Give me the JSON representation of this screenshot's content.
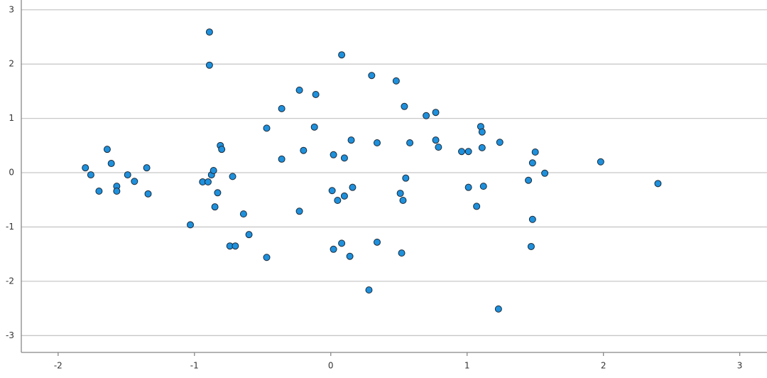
{
  "chart_data": {
    "type": "scatter",
    "x": [
      -1.8,
      -1.76,
      -1.7,
      -1.64,
      -1.61,
      -1.57,
      -1.57,
      -1.49,
      -1.44,
      -1.35,
      -1.34,
      -1.03,
      -0.89,
      -0.89,
      -0.94,
      -0.9,
      -0.875,
      -0.86,
      -0.81,
      -0.8,
      -0.83,
      -0.85,
      -0.72,
      -0.74,
      -0.7,
      -0.64,
      -0.6,
      -0.47,
      -0.47,
      -0.36,
      -0.36,
      -0.23,
      -0.2,
      -0.23,
      -0.11,
      -0.12,
      0.02,
      0.01,
      0.02,
      0.05,
      0.08,
      0.08,
      0.1,
      0.1,
      0.15,
      0.16,
      0.14,
      0.28,
      0.3,
      0.34,
      0.34,
      0.48,
      0.51,
      0.53,
      0.52,
      0.54,
      0.55,
      0.58,
      0.7,
      0.77,
      0.77,
      0.79,
      0.96,
      1.01,
      1.01,
      1.07,
      1.1,
      1.11,
      1.11,
      1.12,
      1.24,
      1.23,
      1.45,
      1.48,
      1.5,
      1.48,
      1.47,
      1.57,
      1.98,
      2.4
    ],
    "values": [
      0.09,
      -0.04,
      -0.34,
      0.43,
      0.17,
      -0.25,
      -0.34,
      -0.04,
      -0.16,
      0.09,
      -0.39,
      -0.96,
      2.59,
      1.98,
      -0.17,
      -0.17,
      -0.04,
      0.04,
      0.5,
      0.43,
      -0.37,
      -0.63,
      -0.07,
      -1.35,
      -1.35,
      -0.76,
      -1.14,
      0.82,
      -1.56,
      1.18,
      0.25,
      1.52,
      0.41,
      -0.71,
      1.44,
      0.84,
      0.33,
      -0.33,
      -1.41,
      -0.51,
      2.17,
      -1.3,
      0.27,
      -0.43,
      0.6,
      -0.27,
      -1.54,
      -2.16,
      1.79,
      0.55,
      -1.28,
      1.69,
      -0.38,
      -0.51,
      -1.48,
      1.22,
      -0.1,
      0.55,
      1.05,
      1.11,
      0.6,
      0.47,
      0.39,
      0.39,
      -0.27,
      -0.62,
      0.85,
      0.75,
      0.46,
      -0.25,
      0.56,
      -2.51,
      -0.14,
      0.18,
      0.38,
      -0.86,
      -1.36,
      -0.01,
      0.2,
      -0.2
    ],
    "color": "#1e90dc",
    "xlim": [
      -2.27,
      3.2
    ],
    "ylim": [
      -3.31,
      3.18
    ],
    "xticks": [
      -2,
      -1,
      0,
      1,
      2,
      3
    ],
    "yticks": [
      -3,
      -2,
      -1,
      0,
      1,
      2,
      3
    ],
    "grid": true
  }
}
